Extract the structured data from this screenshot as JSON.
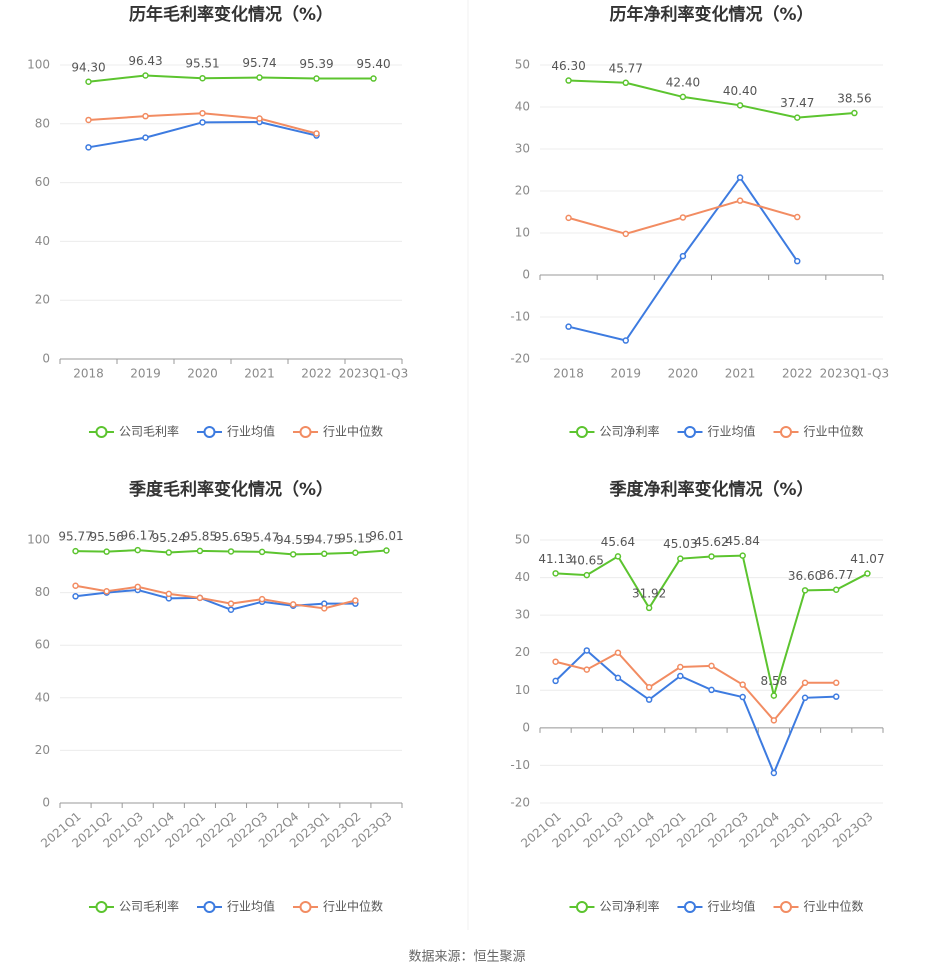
{
  "chart_data": [
    {
      "type": "line",
      "title": "历年毛利率变化情况（%）",
      "categories": [
        "2018",
        "2019",
        "2020",
        "2021",
        "2022",
        "2023Q1-Q3"
      ],
      "series": [
        {
          "name": "公司毛利率",
          "color": "#5cc42f",
          "values": [
            94.3,
            96.43,
            95.51,
            95.74,
            95.39,
            95.4
          ],
          "value_labels": [
            "94.30",
            "96.43",
            "95.51",
            "95.74",
            "95.39",
            "95.40"
          ]
        },
        {
          "name": "行业均值",
          "color": "#3d7be0",
          "values": [
            72,
            75.3,
            80.5,
            80.6,
            76,
            null
          ]
        },
        {
          "name": "行业中位数",
          "color": "#f28c62",
          "values": [
            81.3,
            82.6,
            83.6,
            81.8,
            76.7,
            null
          ]
        }
      ],
      "ylim": [
        0,
        100
      ],
      "yticks": [
        0,
        20,
        40,
        60,
        80,
        100
      ],
      "grid": true
    },
    {
      "type": "line",
      "title": "历年净利率变化情况（%）",
      "categories": [
        "2018",
        "2019",
        "2020",
        "2021",
        "2022",
        "2023Q1-Q3"
      ],
      "series": [
        {
          "name": "公司净利率",
          "color": "#5cc42f",
          "values": [
            46.3,
            45.77,
            42.4,
            40.4,
            37.47,
            38.56
          ],
          "value_labels": [
            "46.30",
            "45.77",
            "42.40",
            "40.40",
            "37.47",
            "38.56"
          ]
        },
        {
          "name": "行业均值",
          "color": "#3d7be0",
          "values": [
            -12.3,
            -15.6,
            4.5,
            23.2,
            3.3,
            null
          ]
        },
        {
          "name": "行业中位数",
          "color": "#f28c62",
          "values": [
            13.6,
            9.8,
            13.7,
            17.7,
            13.8,
            null
          ]
        }
      ],
      "ylim": [
        -20,
        50
      ],
      "yticks": [
        -20,
        -10,
        0,
        10,
        20,
        30,
        40,
        50
      ],
      "grid": true
    },
    {
      "type": "line",
      "title": "季度毛利率变化情况（%）",
      "categories": [
        "2021Q1",
        "2021Q2",
        "2021Q3",
        "2021Q4",
        "2022Q1",
        "2022Q2",
        "2022Q3",
        "2022Q4",
        "2023Q1",
        "2023Q2",
        "2023Q3"
      ],
      "series": [
        {
          "name": "公司毛利率",
          "color": "#5cc42f",
          "values": [
            95.77,
            95.56,
            96.17,
            95.24,
            95.85,
            95.65,
            95.47,
            94.55,
            94.75,
            95.15,
            96.01
          ]
        },
        {
          "name": "行业均值",
          "color": "#3d7be0",
          "values": [
            78.6,
            80,
            81,
            77.8,
            78,
            73.5,
            76.5,
            75,
            75.8,
            75.8,
            null
          ]
        },
        {
          "name": "行业中位数",
          "color": "#f28c62",
          "values": [
            82.6,
            80.5,
            82.2,
            79.5,
            78,
            75.8,
            77.5,
            75.5,
            74,
            77,
            null
          ]
        }
      ],
      "ylim": [
        0,
        100
      ],
      "yticks": [
        0,
        20,
        40,
        60,
        80,
        100
      ],
      "grid": true,
      "rotate_x_labels": true
    },
    {
      "type": "line",
      "title": "季度净利率变化情况（%）",
      "categories": [
        "2021Q1",
        "2021Q2",
        "2021Q3",
        "2021Q4",
        "2022Q1",
        "2022Q2",
        "2022Q3",
        "2022Q4",
        "2023Q1",
        "2023Q2",
        "2023Q3"
      ],
      "series": [
        {
          "name": "公司净利率",
          "color": "#5cc42f",
          "values": [
            41.13,
            40.65,
            45.64,
            31.92,
            45.03,
            45.62,
            45.84,
            8.58,
            36.6,
            36.77,
            41.07
          ],
          "value_labels": [
            "41.13",
            "40.65",
            "45.64",
            "31.92",
            "45.03",
            "45.62",
            "45.84",
            "8.58",
            "36.60",
            "36.77",
            "41.07"
          ]
        },
        {
          "name": "行业均值",
          "color": "#3d7be0",
          "values": [
            12.5,
            20.6,
            13.3,
            7.5,
            13.8,
            10.1,
            8.2,
            -12,
            8,
            8.3,
            null
          ]
        },
        {
          "name": "行业中位数",
          "color": "#f28c62",
          "values": [
            17.6,
            15.5,
            20,
            10.8,
            16.2,
            16.5,
            11.5,
            2,
            12,
            12,
            null
          ]
        }
      ],
      "ylim": [
        -20,
        50
      ],
      "yticks": [
        -20,
        -10,
        0,
        10,
        20,
        30,
        40,
        50
      ],
      "grid": true,
      "rotate_x_labels": true
    }
  ],
  "source": "数据来源：恒生聚源"
}
